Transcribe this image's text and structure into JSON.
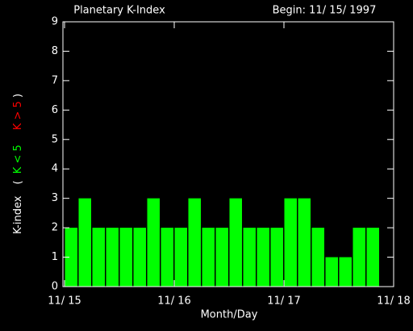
{
  "chart_data": {
    "type": "bar",
    "title": "Planetary K-Index",
    "subtitle": "Begin: 11/ 15/ 1997",
    "xlabel": "Month/Day",
    "ylabel": "K-index",
    "ylabel_open": "(",
    "ylabel_close": ")",
    "legend": [
      {
        "label": "K < 5",
        "color": "#00ff00"
      },
      {
        "label": "K > 5",
        "color": "#ff0000"
      }
    ],
    "x": [
      0,
      0.125,
      0.25,
      0.375,
      0.5,
      0.625,
      0.75,
      0.875,
      1,
      1.125,
      1.25,
      1.375,
      1.5,
      1.625,
      1.75,
      1.875,
      2,
      2.125,
      2.25,
      2.375,
      2.5,
      2.625,
      2.75
    ],
    "values": [
      2,
      3,
      2,
      2,
      2,
      2,
      3,
      2,
      2,
      3,
      2,
      2,
      3,
      2,
      2,
      2,
      3,
      3,
      2,
      1,
      1,
      2,
      2
    ],
    "bar_width": 0.125,
    "color": "#00ff00",
    "xlim": [
      0,
      3
    ],
    "xticks": [
      {
        "value": 0,
        "label": "11/ 15"
      },
      {
        "value": 1,
        "label": "11/ 16"
      },
      {
        "value": 2,
        "label": "11/ 17"
      },
      {
        "value": 3,
        "label": "11/ 18"
      }
    ],
    "ylim": [
      0,
      9
    ],
    "yticks": [
      0,
      1,
      2,
      3,
      4,
      5,
      6,
      7,
      8,
      9
    ]
  }
}
